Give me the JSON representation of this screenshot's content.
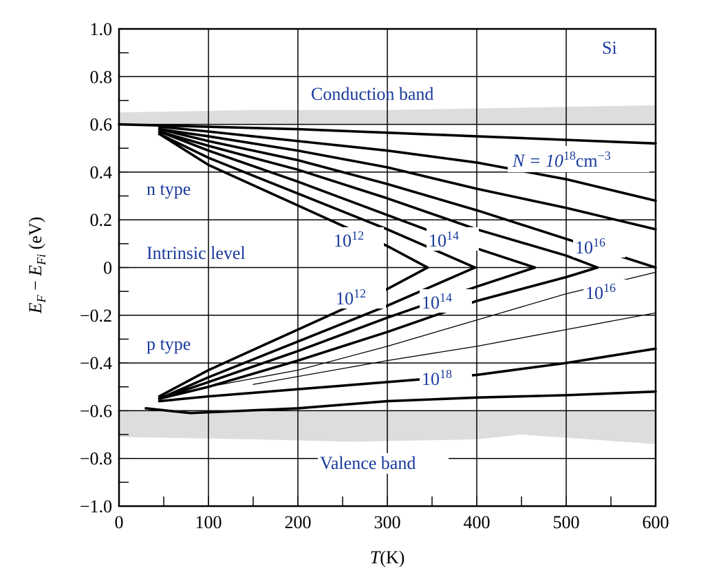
{
  "chart_data": {
    "type": "line",
    "title": "",
    "material_label": "Si",
    "xlabel": {
      "var": "T",
      "unit": "(K)"
    },
    "ylabel": {
      "var": "E",
      "sub1": "F",
      "minus": " − ",
      "var2": "E",
      "sub2": "Fi",
      "unit": " (eV)"
    },
    "xlim": [
      0,
      600
    ],
    "ylim": [
      -1.0,
      1.0
    ],
    "x_ticks": [
      0,
      100,
      200,
      300,
      400,
      500,
      600
    ],
    "x_tick_labels": [
      "0",
      "100",
      "200",
      "300",
      "400",
      "500",
      "600"
    ],
    "y_ticks": [
      1.0,
      0.8,
      0.6,
      0.4,
      0.2,
      0,
      -0.2,
      -0.4,
      -0.6,
      -0.8,
      -1.0
    ],
    "y_tick_labels": [
      "1.0",
      "0.8",
      "0.6",
      "0.4",
      "0.2",
      "0",
      "−0.2",
      "−0.4",
      "−0.6",
      "−0.8",
      "−1.0"
    ],
    "grid": true,
    "band_color": "#dddddd",
    "label_color": "#1a3a9c",
    "regions": {
      "conduction_band": "Conduction band",
      "valence_band": "Valence band",
      "intrinsic_level": "Intrinsic level",
      "n_type": "n type",
      "p_type": "p type"
    },
    "bands": [
      {
        "name": "conduction",
        "upper": [
          [
            0,
            0.65
          ],
          [
            150,
            0.66
          ],
          [
            300,
            0.66
          ],
          [
            450,
            0.67
          ],
          [
            600,
            0.68
          ]
        ],
        "lower": [
          [
            0,
            0.6
          ],
          [
            600,
            0.6
          ]
        ]
      },
      {
        "name": "valence",
        "upper": [
          [
            0,
            -0.6
          ],
          [
            600,
            -0.6
          ]
        ],
        "lower": [
          [
            0,
            -0.71
          ],
          [
            150,
            -0.72
          ],
          [
            260,
            -0.73
          ],
          [
            400,
            -0.72
          ],
          [
            450,
            -0.7
          ],
          [
            600,
            -0.74
          ]
        ]
      }
    ],
    "annotations": {
      "n_doping": {
        "prefix": "N = 10",
        "exp": "18",
        "unit": "cm",
        "unit_exp": "−3"
      },
      "n12": {
        "base": "10",
        "exp": "12"
      },
      "n14": {
        "base": "10",
        "exp": "14"
      },
      "n16": {
        "base": "10",
        "exp": "16"
      },
      "p12": {
        "base": "10",
        "exp": "12"
      },
      "p14": {
        "base": "10",
        "exp": "14"
      },
      "p16": {
        "base": "10",
        "exp": "16"
      },
      "p18": {
        "base": "10",
        "exp": "18"
      }
    },
    "series": [
      {
        "type": "n",
        "doping": "1e12",
        "weight": "heavy",
        "points": [
          [
            45,
            0.56
          ],
          [
            100,
            0.43
          ],
          [
            200,
            0.26
          ],
          [
            300,
            0.09
          ],
          [
            345,
            0.0
          ]
        ]
      },
      {
        "type": "n",
        "doping": "1e13",
        "weight": "heavy",
        "points": [
          [
            45,
            0.56
          ],
          [
            100,
            0.46
          ],
          [
            200,
            0.31
          ],
          [
            300,
            0.16
          ],
          [
            398,
            0.0
          ]
        ]
      },
      {
        "type": "n",
        "doping": "1e14",
        "weight": "heavy",
        "points": [
          [
            45,
            0.57
          ],
          [
            100,
            0.49
          ],
          [
            200,
            0.36
          ],
          [
            300,
            0.22
          ],
          [
            400,
            0.08
          ],
          [
            465,
            0.0
          ]
        ]
      },
      {
        "type": "n",
        "doping": "1e15",
        "weight": "heavy",
        "points": [
          [
            45,
            0.57
          ],
          [
            100,
            0.51
          ],
          [
            200,
            0.41
          ],
          [
            300,
            0.29
          ],
          [
            400,
            0.16
          ],
          [
            500,
            0.05
          ],
          [
            535,
            0.0
          ]
        ]
      },
      {
        "type": "n",
        "doping": "1e16",
        "weight": "heavy",
        "points": [
          [
            45,
            0.58
          ],
          [
            100,
            0.53
          ],
          [
            200,
            0.45
          ],
          [
            300,
            0.35
          ],
          [
            400,
            0.24
          ],
          [
            500,
            0.12
          ],
          [
            600,
            0.0
          ]
        ]
      },
      {
        "type": "n",
        "doping": "1e17",
        "weight": "heavy",
        "points": [
          [
            45,
            0.58
          ],
          [
            100,
            0.55
          ],
          [
            200,
            0.49
          ],
          [
            300,
            0.42
          ],
          [
            400,
            0.33
          ],
          [
            500,
            0.25
          ],
          [
            600,
            0.16
          ]
        ]
      },
      {
        "type": "n",
        "doping": "1e18",
        "weight": "heavy",
        "points": [
          [
            45,
            0.59
          ],
          [
            100,
            0.57
          ],
          [
            200,
            0.53
          ],
          [
            300,
            0.49
          ],
          [
            400,
            0.44
          ],
          [
            500,
            0.37
          ],
          [
            600,
            0.28
          ]
        ]
      },
      {
        "type": "n",
        "doping": "1e19",
        "weight": "heavy",
        "points": [
          [
            0,
            0.6
          ],
          [
            100,
            0.59
          ],
          [
            200,
            0.58
          ],
          [
            300,
            0.565
          ],
          [
            400,
            0.55
          ],
          [
            500,
            0.535
          ],
          [
            600,
            0.52
          ]
        ]
      },
      {
        "type": "p",
        "doping": "1e12",
        "weight": "heavy",
        "points": [
          [
            45,
            -0.54
          ],
          [
            100,
            -0.43
          ],
          [
            200,
            -0.26
          ],
          [
            300,
            -0.09
          ],
          [
            345,
            0.0
          ]
        ]
      },
      {
        "type": "p",
        "doping": "1e13",
        "weight": "heavy",
        "points": [
          [
            45,
            -0.55
          ],
          [
            100,
            -0.46
          ],
          [
            200,
            -0.31
          ],
          [
            300,
            -0.16
          ],
          [
            398,
            0.0
          ]
        ]
      },
      {
        "type": "p",
        "doping": "1e14",
        "weight": "heavy",
        "points": [
          [
            45,
            -0.55
          ],
          [
            100,
            -0.48
          ],
          [
            200,
            -0.35
          ],
          [
            300,
            -0.21
          ],
          [
            400,
            -0.08
          ],
          [
            465,
            0.0
          ]
        ]
      },
      {
        "type": "p",
        "doping": "1e15",
        "weight": "heavy",
        "points": [
          [
            45,
            -0.55
          ],
          [
            100,
            -0.5
          ],
          [
            200,
            -0.39
          ],
          [
            300,
            -0.27
          ],
          [
            400,
            -0.14
          ],
          [
            500,
            -0.04
          ],
          [
            535,
            0.0
          ]
        ]
      },
      {
        "type": "p",
        "doping": "1e16",
        "weight": "thin",
        "points": [
          [
            100,
            -0.5
          ],
          [
            200,
            -0.43
          ],
          [
            300,
            -0.33
          ],
          [
            400,
            -0.22
          ],
          [
            500,
            -0.11
          ],
          [
            600,
            -0.02
          ]
        ]
      },
      {
        "type": "p",
        "doping": "1e17",
        "weight": "thin",
        "points": [
          [
            150,
            -0.49
          ],
          [
            300,
            -0.39
          ],
          [
            400,
            -0.33
          ],
          [
            500,
            -0.26
          ],
          [
            600,
            -0.19
          ]
        ]
      },
      {
        "type": "p",
        "doping": "1e18",
        "weight": "heavy",
        "points": [
          [
            45,
            -0.56
          ],
          [
            100,
            -0.54
          ],
          [
            200,
            -0.51
          ],
          [
            300,
            -0.48
          ],
          [
            400,
            -0.45
          ],
          [
            500,
            -0.4
          ],
          [
            600,
            -0.34
          ]
        ]
      },
      {
        "type": "p",
        "doping": "1e19",
        "weight": "heavy",
        "points": [
          [
            30,
            -0.59
          ],
          [
            80,
            -0.61
          ],
          [
            200,
            -0.59
          ],
          [
            300,
            -0.56
          ],
          [
            400,
            -0.545
          ],
          [
            500,
            -0.535
          ],
          [
            600,
            -0.52
          ]
        ]
      }
    ]
  }
}
